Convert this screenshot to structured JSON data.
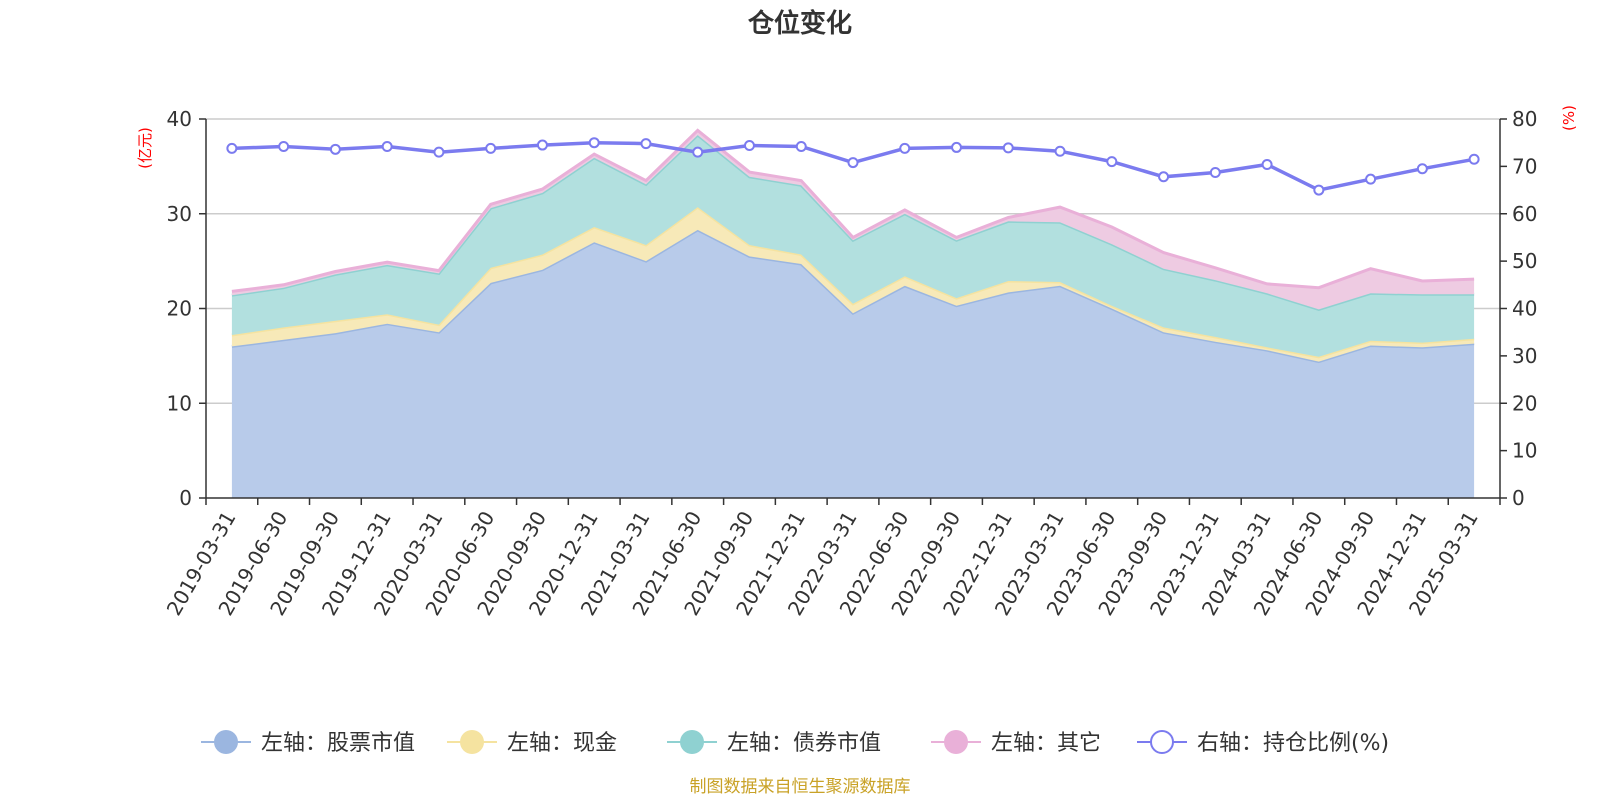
{
  "chart_data": {
    "type": "area",
    "title": "仓位变化",
    "left_axis": {
      "unit": "(亿元)",
      "ylim": [
        0,
        40
      ],
      "ticks": [
        0,
        10,
        20,
        30,
        40
      ]
    },
    "right_axis": {
      "unit": "(%)",
      "ylim": [
        0,
        80
      ],
      "ticks": [
        0,
        10,
        20,
        30,
        40,
        50,
        60,
        70,
        80
      ]
    },
    "categories": [
      "2019-03-31",
      "2019-06-30",
      "2019-09-30",
      "2019-12-31",
      "2020-03-31",
      "2020-06-30",
      "2020-09-30",
      "2020-12-31",
      "2021-03-31",
      "2021-06-30",
      "2021-09-30",
      "2021-12-31",
      "2022-03-31",
      "2022-06-30",
      "2022-09-30",
      "2022-12-31",
      "2023-03-31",
      "2023-06-30",
      "2023-09-30",
      "2023-12-31",
      "2024-03-31",
      "2024-06-30",
      "2024-09-30",
      "2024-12-31",
      "2025-03-31"
    ],
    "series": [
      {
        "name": "左轴：股票市值",
        "axis": "left",
        "stacked": true,
        "color": "#9bb6e0",
        "fill": "#b8cbea",
        "values": [
          16.0,
          16.7,
          17.4,
          18.4,
          17.5,
          22.7,
          24.1,
          27.0,
          25.0,
          28.3,
          25.5,
          24.7,
          19.5,
          22.4,
          20.3,
          21.7,
          22.4,
          20.0,
          17.5,
          16.5,
          15.6,
          14.4,
          16.1,
          15.9,
          16.3
        ]
      },
      {
        "name": "左轴：现金",
        "axis": "left",
        "stacked": true,
        "color": "#f5e3a0",
        "fill": "#f7e9b8",
        "values": [
          1.2,
          1.3,
          1.3,
          1.0,
          0.8,
          1.6,
          1.6,
          1.6,
          1.7,
          2.4,
          1.2,
          1.0,
          1.0,
          1.0,
          0.8,
          1.2,
          0.4,
          0.3,
          0.5,
          0.5,
          0.3,
          0.5,
          0.5,
          0.5,
          0.5
        ]
      },
      {
        "name": "左轴：债券市值",
        "axis": "left",
        "stacked": true,
        "color": "#8fd1d1",
        "fill": "#b2e0df",
        "values": [
          4.2,
          4.2,
          4.9,
          5.2,
          5.4,
          6.3,
          6.5,
          7.3,
          6.4,
          7.6,
          7.2,
          7.3,
          6.7,
          6.6,
          6.1,
          6.3,
          6.3,
          6.5,
          6.2,
          6.0,
          5.7,
          5.0,
          5.0,
          5.1,
          4.7
        ]
      },
      {
        "name": "左轴：其它",
        "axis": "left",
        "stacked": true,
        "color": "#e9b0d8",
        "fill": "#eecbe2",
        "values": [
          0.4,
          0.3,
          0.3,
          0.3,
          0.3,
          0.4,
          0.4,
          0.4,
          0.4,
          0.5,
          0.5,
          0.5,
          0.3,
          0.4,
          0.3,
          0.4,
          1.6,
          1.8,
          1.7,
          1.3,
          1.0,
          2.3,
          2.6,
          1.4,
          1.6
        ]
      },
      {
        "name": "右轴：持仓比例(%)",
        "axis": "right",
        "type": "line",
        "color": "#7b7bef",
        "values": [
          73.8,
          74.2,
          73.6,
          74.2,
          73.0,
          73.8,
          74.5,
          75.0,
          74.8,
          73.0,
          74.4,
          74.2,
          70.8,
          73.8,
          74.0,
          73.9,
          73.2,
          71.0,
          67.8,
          68.7,
          70.4,
          65.0,
          67.3,
          69.5,
          71.5
        ]
      }
    ],
    "legend_position": "bottom",
    "grid": true
  },
  "footer": {
    "source": "制图数据来自恒生聚源数据库"
  }
}
